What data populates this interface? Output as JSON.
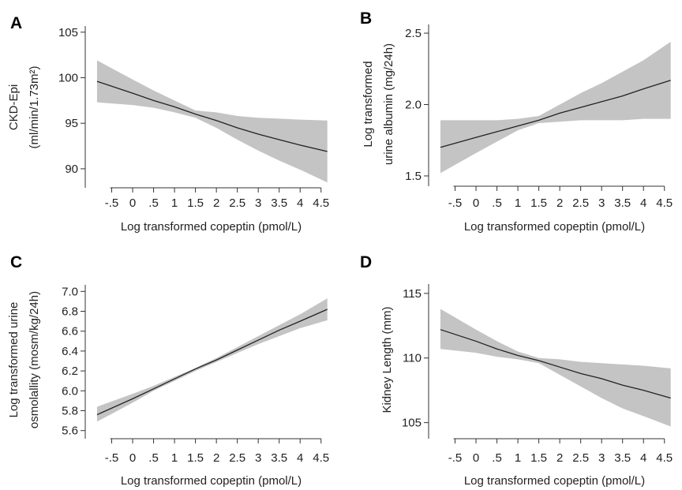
{
  "chart_data": [
    {
      "panel": "A",
      "type": "line",
      "xlabel": "Log transformed copeptin (pmol/L)",
      "ylabel": [
        "CKD-Epi",
        "(ml/min/1.73m²)"
      ],
      "xticks": [
        "-.5",
        "0",
        ".5",
        "1",
        "1.5",
        "2",
        "2.5",
        "3",
        "3.5",
        "4",
        "4.5"
      ],
      "yticks": [
        "90",
        "95",
        "100",
        "105"
      ],
      "xlim": [
        -1.0,
        4.75
      ],
      "ylim": [
        88.0,
        105.5
      ],
      "x": [
        -0.85,
        0.0,
        0.5,
        1.0,
        1.5,
        2.0,
        2.5,
        3.0,
        3.5,
        4.0,
        4.65
      ],
      "y": [
        99.6,
        98.3,
        97.5,
        96.8,
        96.0,
        95.3,
        94.5,
        93.8,
        93.2,
        92.6,
        91.9
      ],
      "lower": [
        97.3,
        97.0,
        96.7,
        96.2,
        95.6,
        94.5,
        93.2,
        92.0,
        90.9,
        89.9,
        88.5
      ],
      "upper": [
        101.9,
        99.8,
        98.6,
        97.5,
        96.4,
        96.2,
        95.8,
        95.6,
        95.5,
        95.4,
        95.3
      ],
      "grid": false
    },
    {
      "panel": "B",
      "type": "line",
      "xlabel": "Log transformed copeptin (pmol/L)",
      "ylabel": [
        "Log transformed",
        "urine albumin (mg/24h)"
      ],
      "xticks": [
        "-.5",
        "0",
        ".5",
        "1",
        "1.5",
        "2",
        "2.5",
        "3",
        "3.5",
        "4",
        "4.5"
      ],
      "yticks": [
        "1.5",
        "2.0",
        "2.5"
      ],
      "xlim": [
        -1.0,
        4.75
      ],
      "ylim": [
        1.45,
        2.55
      ],
      "x": [
        -0.85,
        0.0,
        0.5,
        1.0,
        1.5,
        2.0,
        2.5,
        3.0,
        3.5,
        4.0,
        4.65
      ],
      "y": [
        1.7,
        1.77,
        1.81,
        1.85,
        1.89,
        1.94,
        1.98,
        2.02,
        2.06,
        2.11,
        2.17
      ],
      "lower": [
        1.52,
        1.66,
        1.74,
        1.82,
        1.87,
        1.88,
        1.89,
        1.89,
        1.89,
        1.9,
        1.9
      ],
      "upper": [
        1.89,
        1.89,
        1.89,
        1.9,
        1.92,
        2.0,
        2.08,
        2.15,
        2.23,
        2.31,
        2.44
      ],
      "grid": false
    },
    {
      "panel": "C",
      "type": "line",
      "xlabel": "Log transformed copeptin (pmol/L)",
      "ylabel": [
        "Log transformed urine",
        "osmolallity (mosm/kg/24h)"
      ],
      "xticks": [
        "-.5",
        "0",
        ".5",
        "1",
        "1.5",
        "2",
        "2.5",
        "3",
        "3.5",
        "4",
        "4.5"
      ],
      "yticks": [
        "5.6",
        "5.8",
        "6.0",
        "6.2",
        "6.4",
        "6.6",
        "6.8",
        "7.0"
      ],
      "xlim": [
        -1.0,
        4.75
      ],
      "ylim": [
        5.55,
        7.05
      ],
      "x": [
        -0.85,
        0.0,
        0.5,
        1.0,
        1.5,
        2.0,
        2.5,
        3.0,
        3.5,
        4.0,
        4.65
      ],
      "y": [
        5.76,
        5.92,
        6.02,
        6.12,
        6.22,
        6.31,
        6.41,
        6.51,
        6.61,
        6.7,
        6.82
      ],
      "lower": [
        5.69,
        5.88,
        6.0,
        6.1,
        6.2,
        6.29,
        6.38,
        6.47,
        6.55,
        6.63,
        6.71
      ],
      "upper": [
        5.84,
        5.97,
        6.05,
        6.14,
        6.23,
        6.33,
        6.44,
        6.55,
        6.66,
        6.77,
        6.93
      ],
      "grid": false
    },
    {
      "panel": "D",
      "type": "line",
      "xlabel": "Log transformed copeptin (pmol/L)",
      "ylabel": [
        "Kidney Length (mm)"
      ],
      "xticks": [
        "-.5",
        "0",
        ".5",
        "1",
        "1.5",
        "2",
        "2.5",
        "3",
        "3.5",
        "4",
        "4.5"
      ],
      "yticks": [
        "105",
        "110",
        "115"
      ],
      "xlim": [
        -1.0,
        4.75
      ],
      "ylim": [
        104.0,
        115.6
      ],
      "x": [
        -0.85,
        0.0,
        0.5,
        1.0,
        1.5,
        2.0,
        2.5,
        3.0,
        3.5,
        4.0,
        4.65
      ],
      "y": [
        112.2,
        111.3,
        110.7,
        110.2,
        109.8,
        109.3,
        108.8,
        108.4,
        107.9,
        107.5,
        106.9
      ],
      "lower": [
        110.7,
        110.4,
        110.1,
        109.9,
        109.6,
        108.7,
        107.8,
        106.9,
        106.1,
        105.5,
        104.7
      ],
      "upper": [
        113.8,
        112.2,
        111.3,
        110.5,
        110.0,
        109.9,
        109.7,
        109.6,
        109.5,
        109.4,
        109.2
      ],
      "grid": false
    }
  ]
}
